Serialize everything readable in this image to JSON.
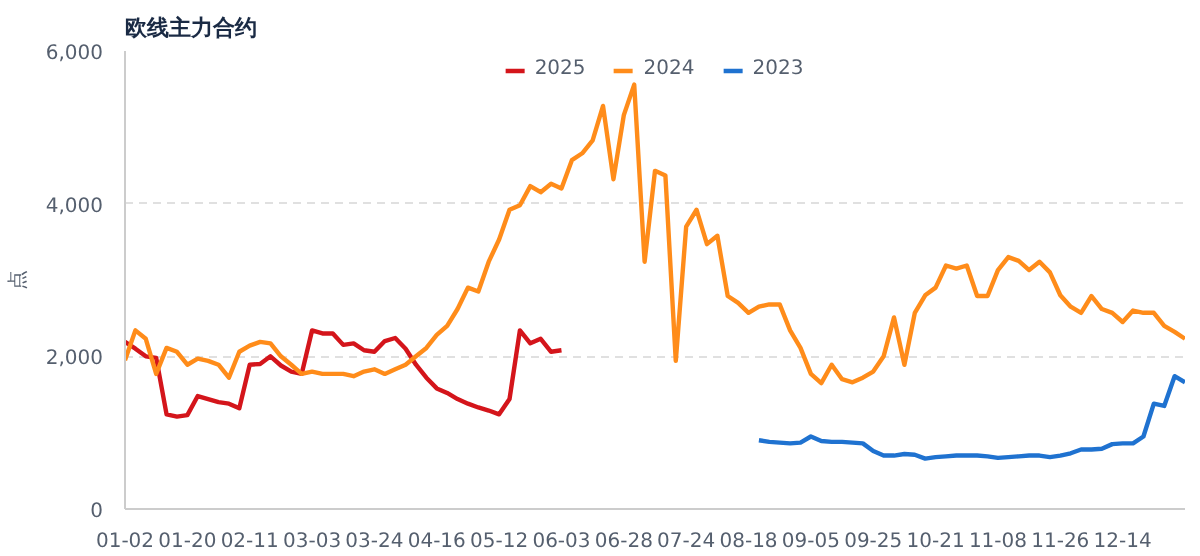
{
  "chart_data": {
    "type": "line",
    "title": "欧线主力合约",
    "ylabel": "点",
    "categories": [
      "01-02",
      null,
      null,
      null,
      null,
      null,
      "01-20",
      null,
      null,
      null,
      null,
      null,
      "02-11",
      null,
      null,
      null,
      null,
      null,
      "03-03",
      null,
      null,
      null,
      null,
      null,
      "03-24",
      null,
      null,
      null,
      null,
      null,
      "04-16",
      null,
      null,
      null,
      null,
      null,
      "05-12",
      null,
      null,
      null,
      null,
      null,
      "06-03",
      null,
      null,
      null,
      null,
      null,
      "06-28",
      null,
      null,
      null,
      null,
      null,
      "07-24",
      null,
      null,
      null,
      null,
      null,
      "08-18",
      null,
      null,
      null,
      null,
      null,
      "09-05",
      null,
      null,
      null,
      null,
      null,
      "09-25",
      null,
      null,
      null,
      null,
      null,
      "10-21",
      null,
      null,
      null,
      null,
      null,
      "11-08",
      null,
      null,
      null,
      null,
      null,
      "11-26",
      null,
      null,
      null,
      null,
      null,
      "12-14",
      null,
      null,
      null,
      null,
      null,
      null
    ],
    "series": [
      {
        "name": "2025",
        "color": "#d4151b",
        "values": [
          2190,
          2100,
          2000,
          1980,
          1240,
          1210,
          1230,
          1480,
          1440,
          1400,
          1380,
          1320,
          1890,
          1900,
          2000,
          1880,
          1800,
          1770,
          2340,
          2300,
          2300,
          2150,
          2170,
          2080,
          2060,
          2200,
          2240,
          2100,
          1890,
          1720,
          1580,
          1520,
          1440,
          1380,
          1330,
          1290,
          1240,
          1440,
          2340,
          2170,
          2230,
          2060,
          2080,
          null,
          null,
          null,
          null,
          null,
          null,
          null,
          null,
          null,
          null,
          null,
          null,
          null,
          null,
          null,
          null,
          null,
          null,
          null,
          null,
          null,
          null,
          null,
          null,
          null,
          null,
          null,
          null,
          null,
          null,
          null,
          null,
          null,
          null,
          null,
          null,
          null,
          null,
          null,
          null,
          null,
          null,
          null,
          null,
          null,
          null,
          null,
          null,
          null,
          null,
          null,
          null,
          null,
          null,
          null,
          null,
          null,
          null,
          null,
          null
        ]
      },
      {
        "name": "2024",
        "color": "#ff8c1a",
        "values": [
          1950,
          2340,
          2230,
          1770,
          2110,
          2060,
          1890,
          1970,
          1940,
          1890,
          1720,
          2060,
          2140,
          2190,
          2170,
          2000,
          1890,
          1770,
          1800,
          1770,
          1770,
          1770,
          1740,
          1800,
          1830,
          1770,
          1830,
          1890,
          2000,
          2110,
          2280,
          2400,
          2620,
          2900,
          2850,
          3240,
          3530,
          3920,
          3980,
          4230,
          4150,
          4260,
          4200,
          4570,
          4660,
          4830,
          5280,
          4320,
          5160,
          5560,
          3240,
          4430,
          4370,
          1940,
          3700,
          3920,
          3470,
          3580,
          2790,
          2700,
          2570,
          2650,
          2680,
          2680,
          2340,
          2110,
          1770,
          1650,
          1890,
          1700,
          1660,
          1720,
          1800,
          2000,
          2510,
          1890,
          2570,
          2800,
          2900,
          3190,
          3150,
          3190,
          2790,
          2790,
          3130,
          3300,
          3250,
          3130,
          3240,
          3100,
          2800,
          2650,
          2570,
          2790,
          2620,
          2570,
          2450,
          2600,
          2570,
          2570,
          2400,
          2320,
          2230
        ]
      },
      {
        "name": "2023",
        "color": "#1f72d0",
        "values": [
          null,
          null,
          null,
          null,
          null,
          null,
          null,
          null,
          null,
          null,
          null,
          null,
          null,
          null,
          null,
          null,
          null,
          null,
          null,
          null,
          null,
          null,
          null,
          null,
          null,
          null,
          null,
          null,
          null,
          null,
          null,
          null,
          null,
          null,
          null,
          null,
          null,
          null,
          null,
          null,
          null,
          null,
          null,
          null,
          null,
          null,
          null,
          null,
          null,
          null,
          null,
          null,
          null,
          null,
          null,
          null,
          null,
          null,
          null,
          null,
          null,
          900,
          880,
          870,
          860,
          870,
          950,
          890,
          880,
          880,
          870,
          860,
          760,
          700,
          700,
          720,
          710,
          660,
          680,
          690,
          700,
          700,
          700,
          690,
          670,
          680,
          690,
          700,
          700,
          680,
          700,
          730,
          780,
          780,
          790,
          850,
          860,
          860,
          950,
          1380,
          1350,
          1740,
          1660
        ]
      }
    ],
    "ylim": [
      0,
      6000
    ],
    "yticks": [
      0,
      {
        "value": 2000,
        "label": "2,000"
      },
      {
        "value": 4000,
        "label": "4,000"
      },
      {
        "value": 6000,
        "label": "6,000"
      }
    ],
    "grid": "y",
    "legend": "top",
    "marker": "none",
    "line_style": "solid"
  }
}
